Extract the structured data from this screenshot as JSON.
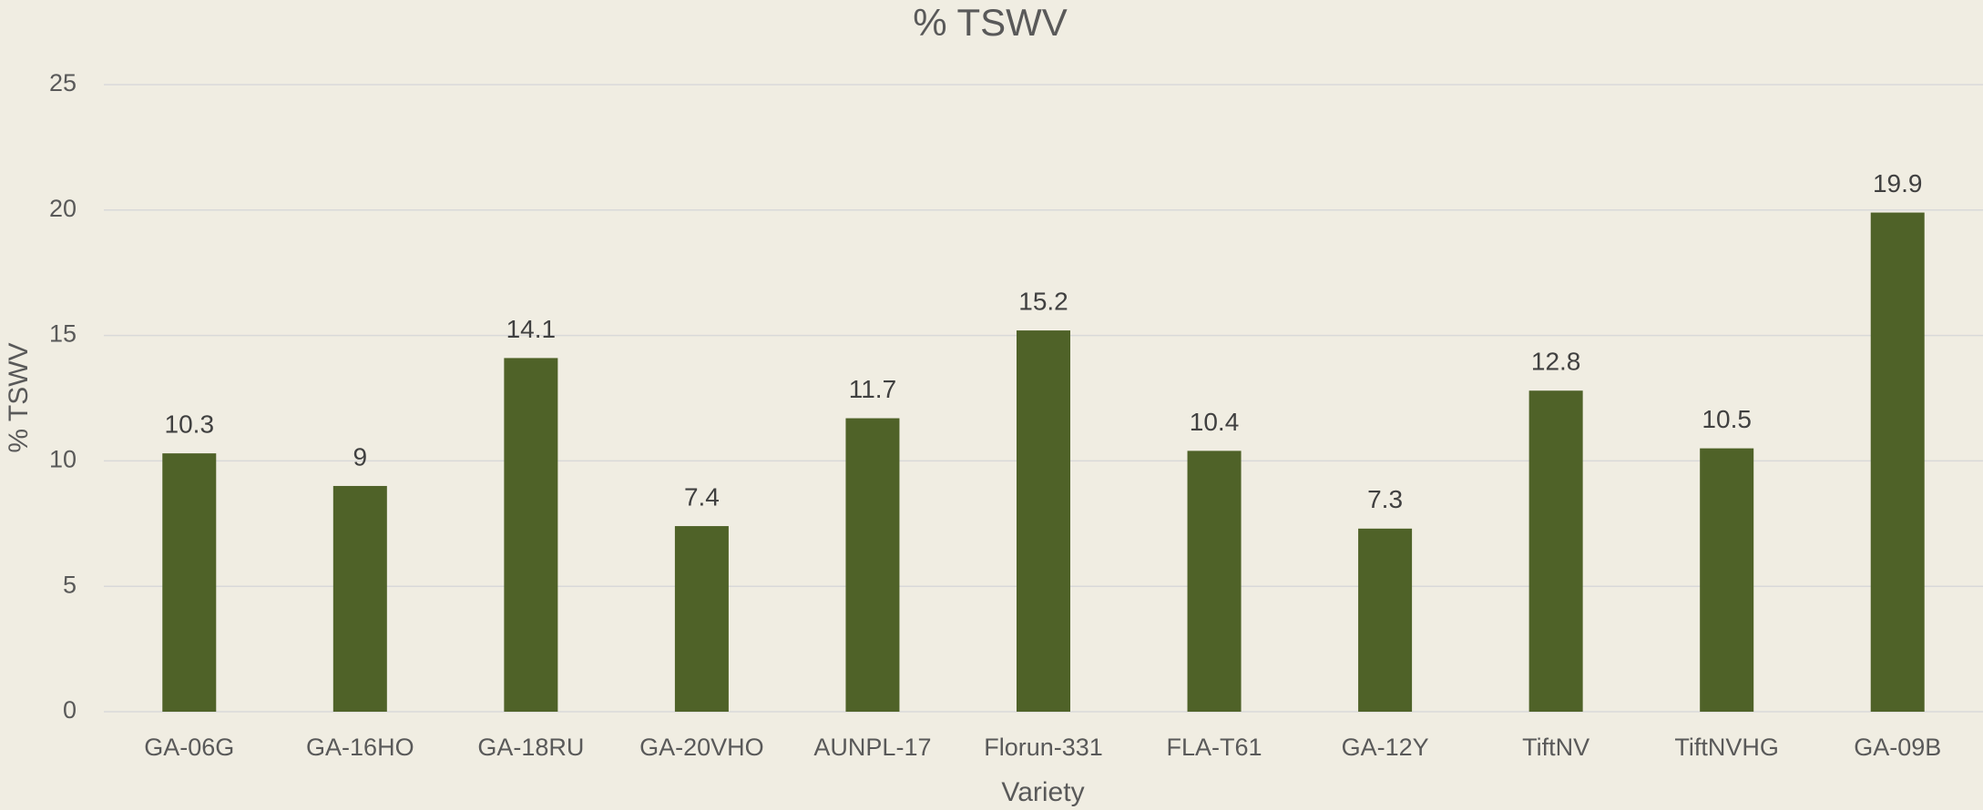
{
  "chart_data": {
    "type": "bar",
    "title": "% TSWV",
    "x_label": "Variety",
    "y_label": "% TSWV",
    "categories": [
      "GA-06G",
      "GA-16HO",
      "GA-18RU",
      "GA-20VHO",
      "AUNPL-17",
      "Florun-331",
      "FLA-T61",
      "GA-12Y",
      "TiftNV",
      "TiftNVHG",
      "GA-09B"
    ],
    "values": [
      10.3,
      9,
      14.1,
      7.4,
      11.7,
      15.2,
      10.4,
      7.3,
      12.8,
      10.5,
      19.9
    ],
    "color": "#4f6228",
    "ylim": [
      0,
      25
    ],
    "yticks": [
      0,
      5,
      10,
      15,
      20,
      25
    ],
    "grid": true
  }
}
